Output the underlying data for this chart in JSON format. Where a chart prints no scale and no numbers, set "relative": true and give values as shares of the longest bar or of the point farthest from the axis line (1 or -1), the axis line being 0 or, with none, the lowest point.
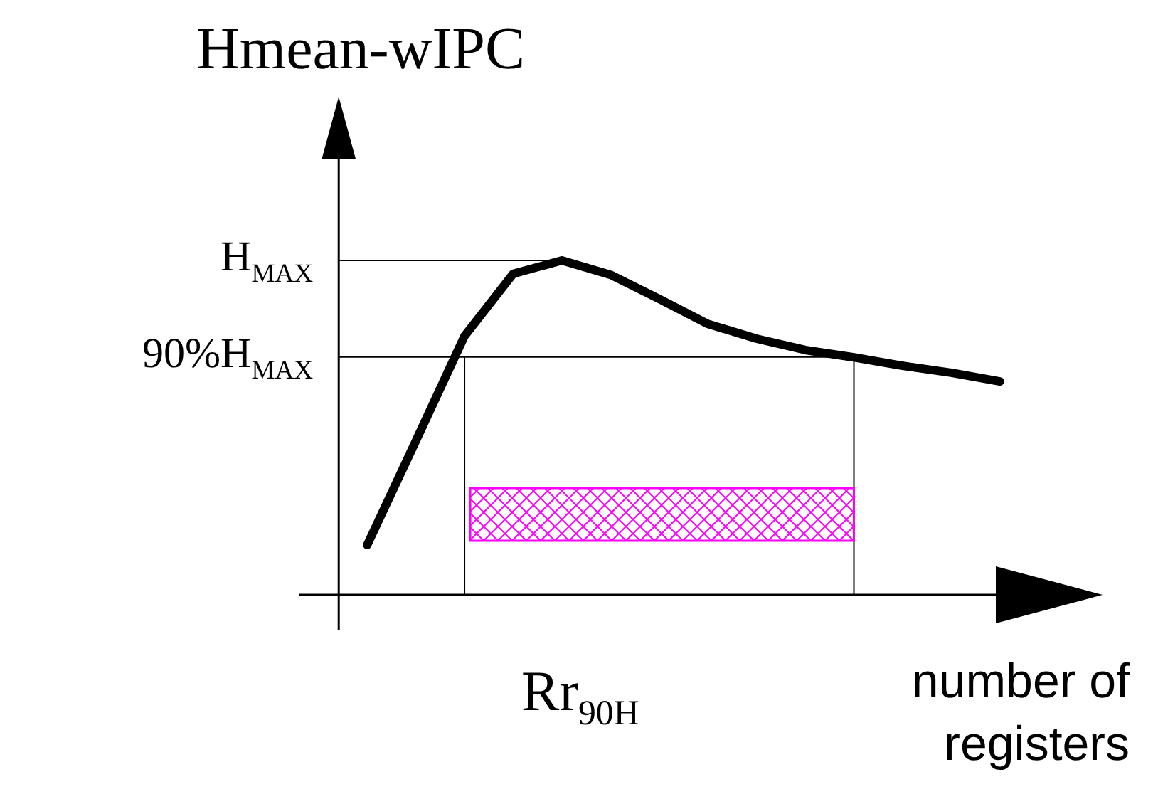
{
  "chart_data": {
    "type": "line",
    "ylabel": "Hmean-wIPC",
    "xlabel": "number of registers",
    "relative": true,
    "color": "#000000",
    "categories": [
      null,
      null,
      null,
      null,
      null,
      null,
      null,
      null,
      null,
      null,
      null,
      null,
      null,
      null
    ],
    "values": [
      0.149,
      0.46,
      0.774,
      0.96,
      1.0,
      0.957,
      0.885,
      0.81,
      0.766,
      0.732,
      0.71,
      0.685,
      0.664,
      0.638
    ],
    "ref_lines": [
      {
        "axis": "y",
        "value": 1.0,
        "label": "H$_{MAX}$"
      },
      {
        "axis": "y",
        "value": 0.711,
        "label": "90%H$_{MAX}$"
      }
    ],
    "annotations": [
      "Rr$_{90H}$"
    ],
    "marker": "none",
    "grid": false
  }
}
